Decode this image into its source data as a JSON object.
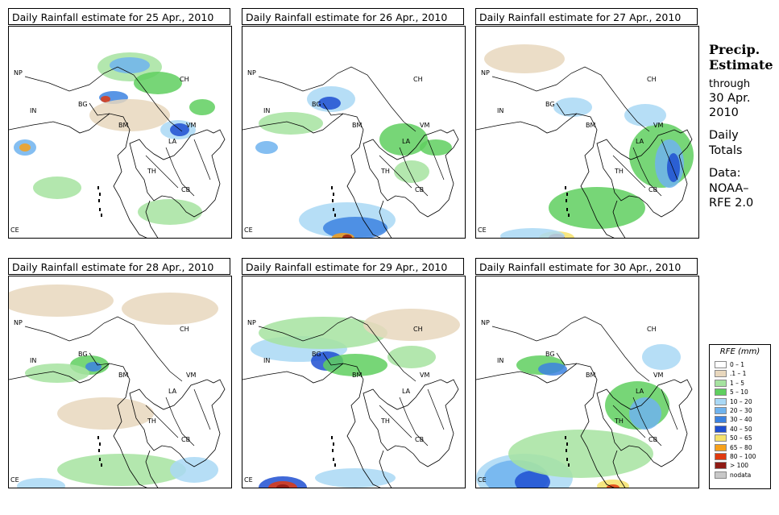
{
  "panels": [
    {
      "title": "Daily Rainfall estimate for  25 Apr., 2010"
    },
    {
      "title": "Daily Rainfall estimate for  26 Apr., 2010"
    },
    {
      "title": "Daily Rainfall estimate for  27 Apr., 2010"
    },
    {
      "title": "Daily Rainfall estimate for  28 Apr., 2010"
    },
    {
      "title": "Daily Rainfall estimate for  29 Apr., 2010"
    },
    {
      "title": "Daily Rainfall estimate for  30 Apr., 2010"
    }
  ],
  "country_labels": [
    "NP",
    "CH",
    "IN",
    "BG",
    "BM",
    "VM",
    "LA",
    "TH",
    "CB",
    "CE"
  ],
  "side": {
    "heading_line1": "Precip.",
    "heading_line2": "Estimate",
    "through": "through",
    "date_line1": "30 Apr.",
    "date_line2": "2010",
    "daily_line1": "Daily",
    "daily_line2": "Totals",
    "data_line1": "Data:",
    "data_line2": "NOAA–",
    "data_line3": "RFE 2.0"
  },
  "legend": {
    "title": "RFE (mm)",
    "items": [
      {
        "label": "0 – 1",
        "color": "#ffffff"
      },
      {
        "label": ".1 – 1",
        "color": "#e8d7bd"
      },
      {
        "label": "1 – 5",
        "color": "#a6e3a0"
      },
      {
        "label": "5 – 10",
        "color": "#5fcf5f"
      },
      {
        "label": "10 – 20",
        "color": "#a9d8f5"
      },
      {
        "label": "20 – 30",
        "color": "#6fb3ee"
      },
      {
        "label": "30 – 40",
        "color": "#3c82e0"
      },
      {
        "label": "40 – 50",
        "color": "#1f4fd1"
      },
      {
        "label": "50 – 65",
        "color": "#f6e26a"
      },
      {
        "label": "65 – 80",
        "color": "#f7a11a"
      },
      {
        "label": "80 – 100",
        "color": "#e03a10"
      },
      {
        "label": "> 100",
        "color": "#8f1b15"
      },
      {
        "label": "nodata",
        "color": "#c8c8c8"
      }
    ]
  }
}
